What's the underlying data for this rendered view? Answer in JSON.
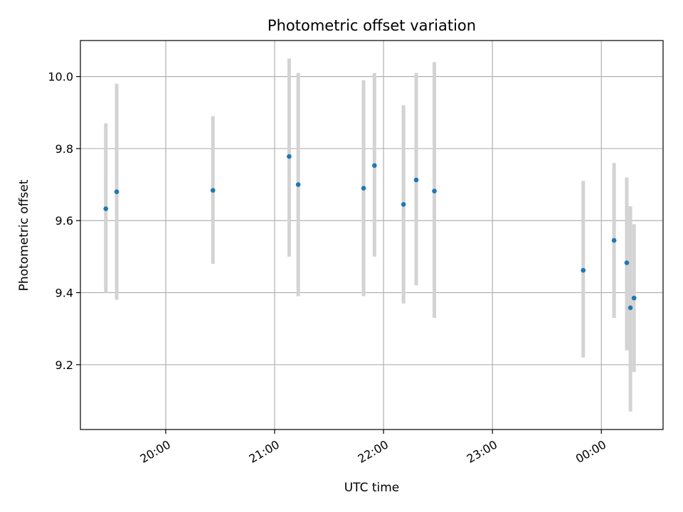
{
  "chart_data": {
    "type": "scatter",
    "title": "Photometric offset variation",
    "xlabel": "UTC time",
    "ylabel": "Photometric offset",
    "x_ticks": [
      "20:00",
      "21:00",
      "22:00",
      "23:00",
      "00:00"
    ],
    "y_ticks": [
      "9.2",
      "9.4",
      "9.6",
      "9.8",
      "10.0"
    ],
    "xlim": [
      "19:13",
      "00:34"
    ],
    "ylim": [
      9.02,
      10.1
    ],
    "grid": true,
    "colors": {
      "marker": "#1f77b4",
      "errorbar": "#d3d3d3",
      "grid": "#b0b0b0"
    },
    "points": [
      {
        "x": "19:27",
        "y": 9.633,
        "err_low": 9.4,
        "err_high": 9.87
      },
      {
        "x": "19:33",
        "y": 9.68,
        "err_low": 9.38,
        "err_high": 9.98
      },
      {
        "x": "20:26",
        "y": 9.684,
        "err_low": 9.48,
        "err_high": 9.89
      },
      {
        "x": "21:08",
        "y": 9.778,
        "err_low": 9.5,
        "err_high": 10.05
      },
      {
        "x": "21:13",
        "y": 9.7,
        "err_low": 9.39,
        "err_high": 10.01
      },
      {
        "x": "21:49",
        "y": 9.69,
        "err_low": 9.39,
        "err_high": 9.99
      },
      {
        "x": "21:55",
        "y": 9.753,
        "err_low": 9.5,
        "err_high": 10.01
      },
      {
        "x": "22:11",
        "y": 9.645,
        "err_low": 9.37,
        "err_high": 9.92
      },
      {
        "x": "22:18",
        "y": 9.713,
        "err_low": 9.42,
        "err_high": 10.01
      },
      {
        "x": "22:28",
        "y": 9.682,
        "err_low": 9.33,
        "err_high": 10.04
      },
      {
        "x": "23:50",
        "y": 9.462,
        "err_low": 9.22,
        "err_high": 9.71
      },
      {
        "x": "00:07",
        "y": 9.545,
        "err_low": 9.33,
        "err_high": 9.76
      },
      {
        "x": "00:14",
        "y": 9.483,
        "err_low": 9.24,
        "err_high": 9.72
      },
      {
        "x": "00:16",
        "y": 9.358,
        "err_low": 9.07,
        "err_high": 9.64
      },
      {
        "x": "00:18",
        "y": 9.385,
        "err_low": 9.18,
        "err_high": 9.59
      }
    ]
  }
}
